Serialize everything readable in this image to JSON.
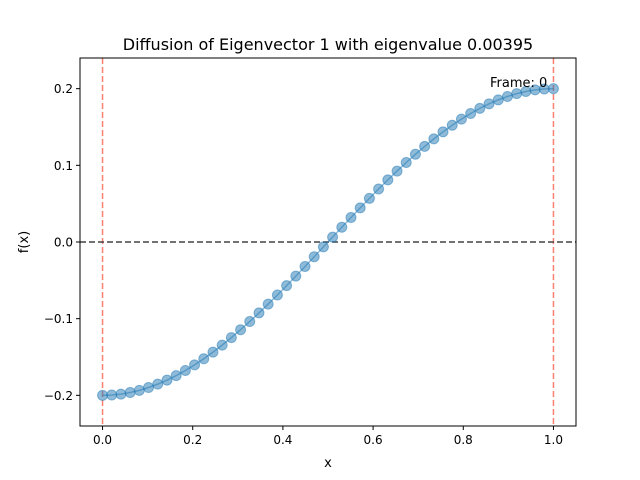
{
  "chart_data": {
    "type": "line",
    "title": "Diffusion of Eigenvector 1 with eigenvalue 0.00395",
    "xlabel": "x",
    "ylabel": "f(x)",
    "xlim": [
      -0.05,
      1.05
    ],
    "ylim": [
      -0.24,
      0.24
    ],
    "xticks": [
      0.0,
      0.2,
      0.4,
      0.6,
      0.8,
      1.0
    ],
    "xtick_labels": [
      "0.0",
      "0.2",
      "0.4",
      "0.6",
      "0.8",
      "1.0"
    ],
    "yticks": [
      -0.2,
      -0.1,
      0.0,
      0.1,
      0.2
    ],
    "ytick_labels": [
      "−0.2",
      "−0.1",
      "0.0",
      "0.1",
      "0.2"
    ],
    "grid": false,
    "annotation": "Frame: 0",
    "reference_lines": {
      "horizontal_y": 0.0,
      "horizontal_color": "#444444",
      "vertical_x": [
        0.0,
        1.0
      ],
      "vertical_color": "#fa8072"
    },
    "series": [
      {
        "color": "#1f77b4",
        "marker": "circle",
        "x": [
          0,
          0.0204,
          0.0408,
          0.0612,
          0.0816,
          0.102,
          0.1224,
          0.1429,
          0.1633,
          0.1837,
          0.2041,
          0.2245,
          0.2449,
          0.2653,
          0.2857,
          0.3061,
          0.3265,
          0.3469,
          0.3673,
          0.3878,
          0.4082,
          0.4286,
          0.449,
          0.4694,
          0.4898,
          0.5102,
          0.5306,
          0.551,
          0.5714,
          0.5918,
          0.6122,
          0.6327,
          0.6531,
          0.6735,
          0.6939,
          0.7143,
          0.7347,
          0.7551,
          0.7755,
          0.7959,
          0.8163,
          0.8367,
          0.8571,
          0.8776,
          0.898,
          0.9184,
          0.9388,
          0.9592,
          0.9796,
          1.0
        ],
        "y": [
          -0.2,
          -0.1996,
          -0.1984,
          -0.1963,
          -0.1935,
          -0.1898,
          -0.1854,
          -0.1802,
          -0.1743,
          -0.1676,
          -0.1603,
          -0.1523,
          -0.1437,
          -0.1345,
          -0.1247,
          -0.1144,
          -0.1037,
          -0.0925,
          -0.081,
          -0.0691,
          -0.0569,
          -0.0445,
          -0.0319,
          -0.0192,
          -0.0064,
          0.0064,
          0.0192,
          0.0319,
          0.0445,
          0.0569,
          0.0691,
          0.081,
          0.0925,
          0.1037,
          0.1144,
          0.1247,
          0.1345,
          0.1437,
          0.1523,
          0.1603,
          0.1676,
          0.1743,
          0.1802,
          0.1854,
          0.1898,
          0.1935,
          0.1963,
          0.1984,
          0.1996,
          0.2
        ]
      }
    ]
  }
}
